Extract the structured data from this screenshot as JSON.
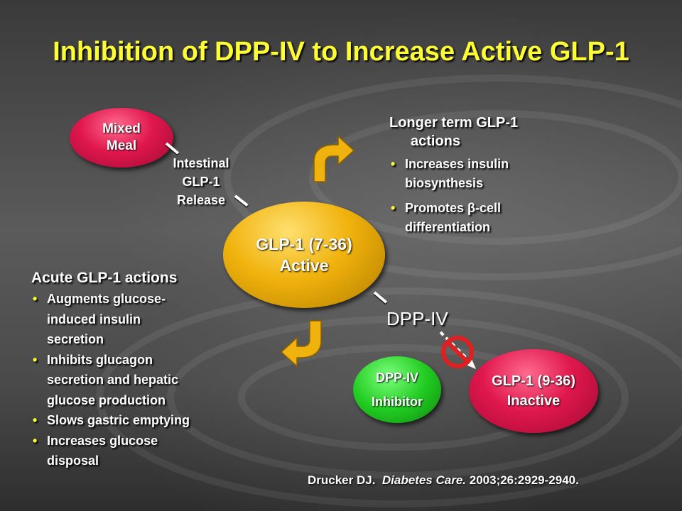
{
  "title": "Inhibition of DPP-IV to Increase Active GLP-1",
  "nodes": {
    "mixed_meal": {
      "line1": "Mixed",
      "line2": "Meal"
    },
    "glp1_active": {
      "line1": "GLP-1 (7-36)",
      "line2": "Active"
    },
    "dpp4_inhibitor": {
      "line1": "DPP-IV",
      "line2": "Inhibitor"
    },
    "glp1_inactive": {
      "line1": "GLP-1 (9-36)",
      "line2": "Inactive"
    }
  },
  "labels": {
    "intestinal": [
      "Intestinal",
      "GLP-1",
      "Release"
    ],
    "dpp4": "DPP-IV"
  },
  "longer_term": {
    "heading_line1": "Longer term GLP-1",
    "heading_line2": "actions",
    "items": [
      {
        "line1": "Increases insulin",
        "line2": "biosynthesis"
      },
      {
        "line1": "Promotes β-cell",
        "line2": "differentiation"
      }
    ]
  },
  "acute": {
    "heading": "Acute GLP-1 actions",
    "items": [
      {
        "lines": [
          "Augments glucose-",
          "induced insulin",
          "secretion"
        ]
      },
      {
        "lines": [
          "Inhibits glucagon",
          "secretion and hepatic",
          "glucose production"
        ]
      },
      {
        "lines": [
          "Slows gastric emptying"
        ]
      },
      {
        "lines": [
          "Increases glucose",
          "disposal"
        ]
      }
    ]
  },
  "citation": {
    "author": "Drucker DJ.",
    "journal": "Diabetes Care.",
    "ref": "2003;26:2929-2940."
  },
  "colors": {
    "title": "#ffff33",
    "pink": "#e0174d",
    "gold": "#f0b20c",
    "green": "#22cc22",
    "arrow": "#f0b20c",
    "no_symbol": "#e02020"
  }
}
